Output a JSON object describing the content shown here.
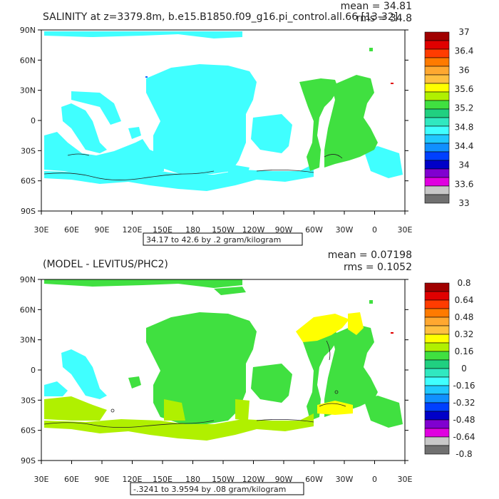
{
  "panels": [
    {
      "title": "SALINITY at z=3379.8m, b.e15.B1850.f09_g16.pi_control.all.66 [13-32]",
      "mean": "mean = 34.81",
      "rms": "rms = 34.8",
      "range_label": "34.17 to 42.6 by .2 gram/kilogram",
      "colorbar": {
        "labels": [
          "37",
          "36.4",
          "36",
          "35.6",
          "35.2",
          "34.8",
          "34.4",
          "34",
          "33.6",
          "33"
        ],
        "colors": [
          "#a00000",
          "#e00000",
          "#ff3c00",
          "#ff7a00",
          "#ffa830",
          "#ffc040",
          "#ffff00",
          "#b0f000",
          "#40e040",
          "#20d080",
          "#30e8c0",
          "#40ffff",
          "#20c8ff",
          "#1090ff",
          "#0040ff",
          "#0000c8",
          "#8000d0",
          "#e000e0",
          "#c8c8c8",
          "#707070"
        ]
      },
      "map": {
        "main_color": "#40ffff",
        "atlantic_color": "#40e040"
      }
    },
    {
      "title": "(MODEL - LEVITUS/PHC2)",
      "mean": "mean = 0.07198",
      "rms": "rms = 0.1052",
      "range_label": "-.3241 to 3.9594 by .08 gram/kilogram",
      "colorbar": {
        "labels": [
          "0.8",
          "0.64",
          "0.48",
          "0.32",
          "0.16",
          "0",
          "-0.16",
          "-0.32",
          "-0.48",
          "-0.64",
          "-0.8"
        ],
        "colors": [
          "#a00000",
          "#e00000",
          "#ff3c00",
          "#ff7a00",
          "#ffa830",
          "#ffc040",
          "#ffff00",
          "#b0f000",
          "#40e040",
          "#20d080",
          "#30e8c0",
          "#40ffff",
          "#20c8ff",
          "#1090ff",
          "#0040ff",
          "#0000c8",
          "#8000d0",
          "#e000e0",
          "#c8c8c8",
          "#707070"
        ]
      },
      "map": {
        "main_color": "#40e040",
        "southern_color": "#b0f000",
        "arctic_color": "#ffff00",
        "indian_color": "#40ffff"
      }
    }
  ],
  "axes": {
    "lat_labels": [
      "90N",
      "60N",
      "30N",
      "0",
      "30S",
      "60S",
      "90S"
    ],
    "lon_labels": [
      "30E",
      "60E",
      "90E",
      "120E",
      "150E",
      "180",
      "150W",
      "120W",
      "90W",
      "60W",
      "30W",
      "0",
      "30E"
    ]
  }
}
